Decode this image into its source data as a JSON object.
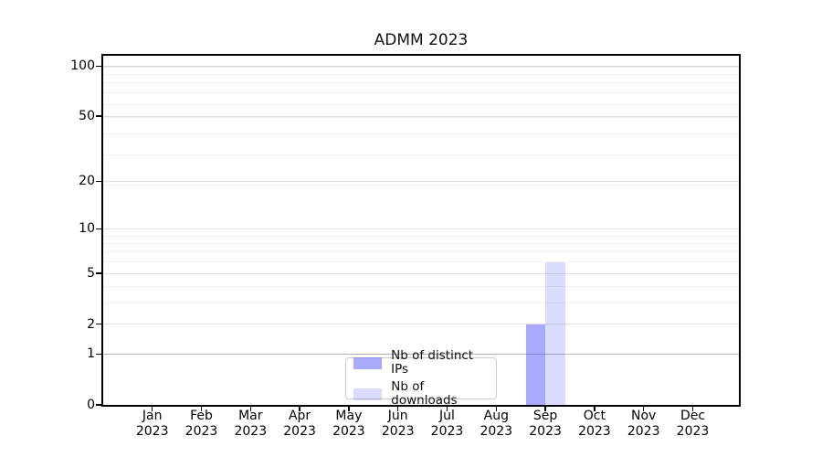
{
  "chart_data": {
    "type": "bar",
    "title": "ADMM 2023",
    "x_categories": [
      "Jan",
      "Feb",
      "Mar",
      "Apr",
      "May",
      "Jun",
      "Jul",
      "Aug",
      "Sep",
      "Oct",
      "Nov",
      "Dec"
    ],
    "x_year": "2023",
    "series": [
      {
        "name": "Nb of distinct IPs",
        "color": "rgba(85,85,250,0.5)",
        "color_hex_on_white": "#aaaafc",
        "values": [
          0,
          0,
          0,
          0,
          0,
          0,
          0,
          0,
          2,
          0,
          0,
          0
        ]
      },
      {
        "name": "Nb of downloads",
        "color": "rgba(85,85,250,0.21)",
        "color_hex_on_white": "#dbdbfa",
        "values": [
          0,
          0,
          0,
          0,
          0,
          0,
          0,
          0,
          6,
          0,
          0,
          0
        ]
      }
    ],
    "y_ticks": [
      0,
      1,
      2,
      5,
      10,
      20,
      50,
      100
    ],
    "y_minor_gridlines": [
      3,
      4,
      6,
      7,
      8,
      9,
      19,
      29,
      39,
      49,
      59,
      69,
      79,
      89,
      99
    ],
    "y_scale": "log10(1+y)",
    "ylim": [
      0,
      117
    ],
    "grid": true,
    "grid_colors": {
      "major": "#e0e0e0",
      "minor": "#f0f0f0",
      "overrides": {
        "1": "#b3b3b3",
        "100": "#d3d3d3"
      }
    },
    "legend_position": "lower center",
    "axis_color": "#000000"
  }
}
